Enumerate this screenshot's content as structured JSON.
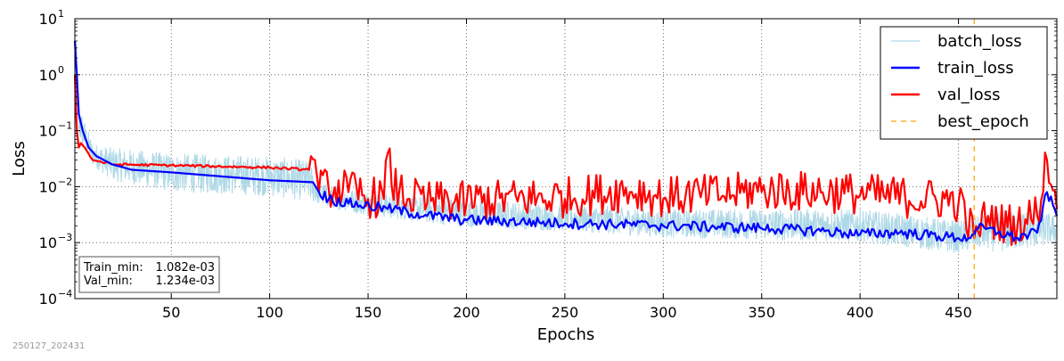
{
  "footer_stamp": "250127_202431",
  "chart_data": {
    "type": "line",
    "xlabel": "Epochs",
    "ylabel": "Loss",
    "yscale": "log",
    "xlim": [
      1,
      500
    ],
    "ylim": [
      0.0001,
      10
    ],
    "x_ticks": [
      "50",
      "100",
      "150",
      "200",
      "250",
      "300",
      "350",
      "400",
      "450"
    ],
    "x_tick_values": [
      50,
      100,
      150,
      200,
      250,
      300,
      350,
      400,
      450
    ],
    "y_ticks": [
      {
        "base": "10",
        "exp": "1",
        "value": 10
      },
      {
        "base": "10",
        "exp": "0",
        "value": 1
      },
      {
        "base": "10",
        "exp": "−1",
        "value": 0.1
      },
      {
        "base": "10",
        "exp": "−2",
        "value": 0.01
      },
      {
        "base": "10",
        "exp": "−3",
        "value": 0.001
      },
      {
        "base": "10",
        "exp": "−4",
        "value": 0.0001
      }
    ],
    "grid": true,
    "legend_position": "top-right",
    "series": [
      {
        "name": "batch_loss",
        "color": "#add8e6",
        "style": "solid",
        "kind": "batch",
        "x": [
          1,
          3,
          10,
          20,
          50,
          100,
          120,
          125,
          150,
          200,
          250,
          300,
          350,
          400,
          430,
          450,
          460,
          470,
          490,
          500
        ],
        "upper": [
          10,
          0.3,
          0.06,
          0.05,
          0.04,
          0.035,
          0.03,
          0.012,
          0.008,
          0.006,
          0.005,
          0.004,
          0.004,
          0.004,
          0.003,
          0.0025,
          0.003,
          0.0035,
          0.004,
          0.003
        ],
        "lower": [
          0.5,
          0.05,
          0.02,
          0.01,
          0.006,
          0.005,
          0.004,
          0.004,
          0.0025,
          0.0015,
          0.0013,
          0.001,
          0.0009,
          0.0008,
          0.0006,
          0.0005,
          0.0006,
          0.0005,
          0.0006,
          0.0008
        ]
      },
      {
        "name": "train_loss",
        "color": "#0000ff",
        "style": "solid",
        "kind": "train",
        "x": [
          1,
          2,
          3,
          5,
          8,
          12,
          20,
          30,
          50,
          100,
          122,
          125,
          130,
          140,
          160,
          180,
          200,
          250,
          300,
          350,
          380,
          400,
          420,
          450,
          455,
          460,
          470,
          480,
          490,
          495,
          500
        ],
        "y": [
          4.0,
          1.0,
          0.2,
          0.1,
          0.05,
          0.035,
          0.025,
          0.02,
          0.018,
          0.013,
          0.012,
          0.008,
          0.006,
          0.005,
          0.004,
          0.003,
          0.0025,
          0.0022,
          0.002,
          0.0018,
          0.0016,
          0.0014,
          0.0015,
          0.0012,
          0.0012,
          0.0018,
          0.0015,
          0.0012,
          0.0015,
          0.008,
          0.003
        ]
      },
      {
        "name": "val_loss",
        "color": "#ff0000",
        "style": "solid",
        "kind": "val",
        "x": [
          1,
          2,
          3,
          4,
          6,
          10,
          20,
          50,
          100,
          120,
          121,
          123,
          125,
          130,
          140,
          150,
          158,
          160,
          162,
          170,
          180,
          200,
          250,
          283,
          300,
          335,
          350,
          400,
          450,
          458,
          465,
          470,
          480,
          490,
          495,
          500
        ],
        "y": [
          1.0,
          0.1,
          0.05,
          0.06,
          0.05,
          0.03,
          0.025,
          0.024,
          0.022,
          0.02,
          0.035,
          0.03,
          0.008,
          0.009,
          0.008,
          0.006,
          0.006,
          0.04,
          0.01,
          0.006,
          0.005,
          0.005,
          0.006,
          0.008,
          0.006,
          0.007,
          0.008,
          0.007,
          0.005,
          0.0012,
          0.003,
          0.002,
          0.002,
          0.003,
          0.03,
          0.004
        ],
        "noise_low": 0.45,
        "noise_high": 2.5
      },
      {
        "name": "best_epoch",
        "color": "#ffa500",
        "style": "dashed",
        "kind": "vline",
        "x_value": 458
      }
    ],
    "annotation": [
      {
        "label": "Train_min:",
        "value": "1.082e-03"
      },
      {
        "label": "Val_min:",
        "value": "1.234e-03"
      }
    ]
  }
}
